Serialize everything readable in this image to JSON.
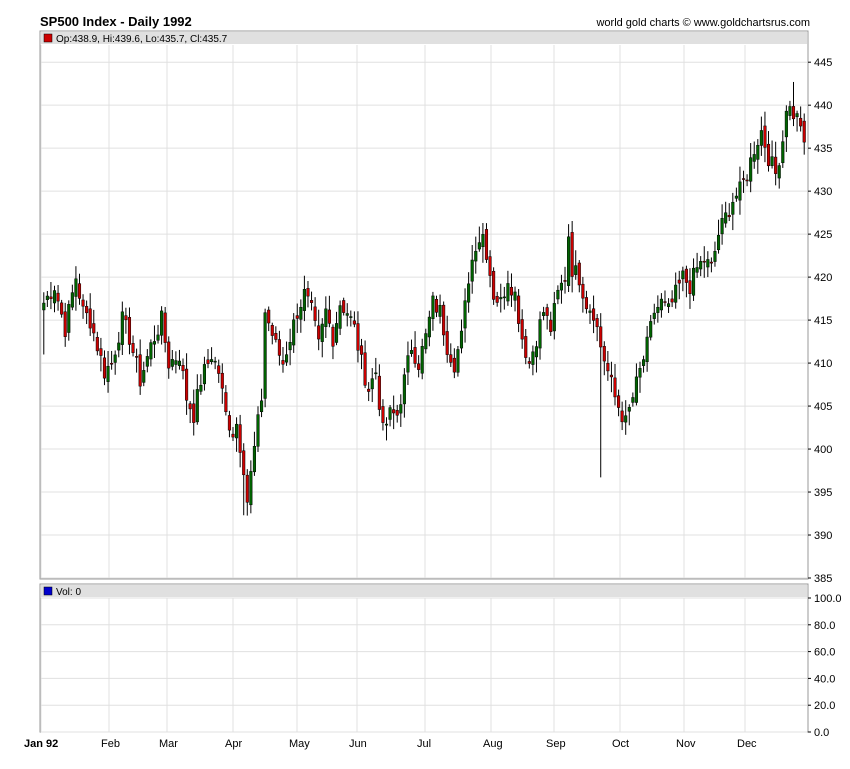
{
  "header": {
    "title": "SP500 Index - Daily 1992",
    "credit": "world gold charts © www.goldchartsrus.com"
  },
  "price_info": "Op:438.9, Hi:439.6, Lo:435.7, Cl:435.7",
  "volume_info": "Vol: 0",
  "colors": {
    "up": "#006400",
    "down": "#cc0000",
    "grid": "#e0e0e0",
    "info_bar": "#e0e0e0",
    "price_marker": "#cc0000",
    "volume_marker": "#0000cc"
  },
  "chart_data": [
    {
      "type": "candlestick",
      "title": "SP500 Index - Daily 1992",
      "ylim": [
        385,
        447
      ],
      "y_ticks": [
        445,
        440,
        435,
        430,
        425,
        420,
        415,
        410,
        405,
        400,
        395,
        390,
        385
      ],
      "x_ticks": [
        "Jan 92",
        "Feb",
        "Mar",
        "Apr",
        "May",
        "Jun",
        "Jul",
        "Aug",
        "Sep",
        "Oct",
        "Nov",
        "Dec"
      ],
      "grid": true,
      "anchors": [
        [
          0,
          417
        ],
        [
          3,
          419
        ],
        [
          6,
          414
        ],
        [
          9,
          420
        ],
        [
          11,
          416
        ],
        [
          13,
          415
        ],
        [
          17,
          409
        ],
        [
          19,
          410
        ],
        [
          22,
          415
        ],
        [
          24,
          413
        ],
        [
          27,
          408
        ],
        [
          30,
          412
        ],
        [
          33,
          415
        ],
        [
          35,
          410
        ],
        [
          38,
          411
        ],
        [
          40,
          406
        ],
        [
          42,
          404
        ],
        [
          44,
          408
        ],
        [
          47,
          411
        ],
        [
          49,
          409
        ],
        [
          51,
          404
        ],
        [
          53,
          402
        ],
        [
          54,
          403
        ],
        [
          56,
          398
        ],
        [
          57,
          394
        ],
        [
          59,
          400
        ],
        [
          61,
          406
        ],
        [
          62,
          416
        ],
        [
          65,
          412
        ],
        [
          67,
          410
        ],
        [
          69,
          413
        ],
        [
          71,
          416
        ],
        [
          73,
          418
        ],
        [
          75,
          416
        ],
        [
          77,
          412
        ],
        [
          79,
          416
        ],
        [
          81,
          413
        ],
        [
          83,
          417
        ],
        [
          85,
          416
        ],
        [
          87,
          414
        ],
        [
          89,
          410
        ],
        [
          91,
          407
        ],
        [
          93,
          409
        ],
        [
          95,
          402
        ],
        [
          97,
          404
        ],
        [
          99,
          404
        ],
        [
          101,
          408
        ],
        [
          103,
          412
        ],
        [
          105,
          410
        ],
        [
          107,
          413
        ],
        [
          109,
          417
        ],
        [
          111,
          416
        ],
        [
          113,
          412
        ],
        [
          115,
          410
        ],
        [
          117,
          413
        ],
        [
          119,
          420
        ],
        [
          121,
          424
        ],
        [
          123,
          425
        ],
        [
          124,
          423
        ],
        [
          126,
          418
        ],
        [
          128,
          417
        ],
        [
          130,
          420
        ],
        [
          132,
          418
        ],
        [
          134,
          413
        ],
        [
          136,
          410
        ],
        [
          138,
          413
        ],
        [
          140,
          416
        ],
        [
          142,
          414
        ],
        [
          144,
          418
        ],
        [
          146,
          420
        ],
        [
          147,
          425
        ],
        [
          148,
          421
        ],
        [
          150,
          420
        ],
        [
          152,
          417
        ],
        [
          154,
          416
        ],
        [
          156,
          412
        ],
        [
          158,
          409
        ],
        [
          160,
          406
        ],
        [
          162,
          404
        ],
        [
          163,
          403
        ],
        [
          165,
          406
        ],
        [
          167,
          409
        ],
        [
          169,
          412
        ],
        [
          171,
          416
        ],
        [
          173,
          417
        ],
        [
          175,
          416
        ],
        [
          177,
          418
        ],
        [
          179,
          420
        ],
        [
          181,
          419
        ],
        [
          183,
          421
        ],
        [
          185,
          422
        ],
        [
          187,
          421
        ],
        [
          189,
          425
        ],
        [
          191,
          427
        ],
        [
          193,
          429
        ],
        [
          195,
          430
        ],
        [
          197,
          432
        ],
        [
          199,
          435
        ],
        [
          201,
          437
        ],
        [
          203,
          434
        ],
        [
          205,
          432
        ],
        [
          207,
          436
        ],
        [
          208,
          440
        ],
        [
          210,
          439
        ],
        [
          212,
          438
        ],
        [
          213,
          435.7
        ]
      ]
    },
    {
      "type": "bar",
      "title": "Vol: 0",
      "ylim": [
        0,
        100
      ],
      "y_ticks": [
        "100.0",
        "80.0",
        "60.0",
        "40.0",
        "20.0",
        "0.0"
      ],
      "values": []
    }
  ]
}
